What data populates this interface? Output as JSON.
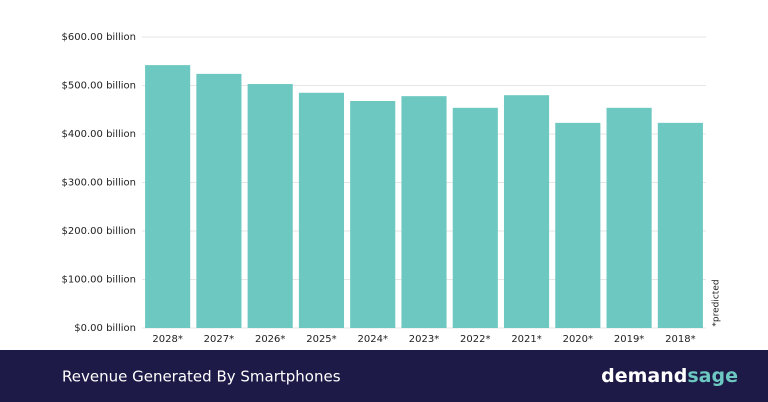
{
  "chart_data": {
    "type": "bar",
    "title": "Revenue Generated By Smartphones",
    "note": "*predicted",
    "brand": [
      "demand",
      "sage"
    ],
    "categories": [
      "2028*",
      "2027*",
      "2026*",
      "2025*",
      "2024*",
      "2023*",
      "2022*",
      "2021*",
      "2020*",
      "2019*",
      "2018*"
    ],
    "values": [
      542,
      524,
      503,
      485,
      468,
      478,
      454,
      480,
      423,
      454,
      423
    ],
    "color": "#6cc8c1",
    "ylim": [
      0,
      600
    ],
    "yticks": [
      {
        "value": 0,
        "label": "$0.00 billion"
      },
      {
        "value": 100,
        "label": "$100.00 billion"
      },
      {
        "value": 200,
        "label": "$200.00 billion"
      },
      {
        "value": 300,
        "label": "$300.00 billion"
      },
      {
        "value": 400,
        "label": "$400.00 billion"
      },
      {
        "value": 500,
        "label": "$500.00 billion"
      },
      {
        "value": 600,
        "label": "$600.00 billion"
      }
    ],
    "grid": true
  }
}
